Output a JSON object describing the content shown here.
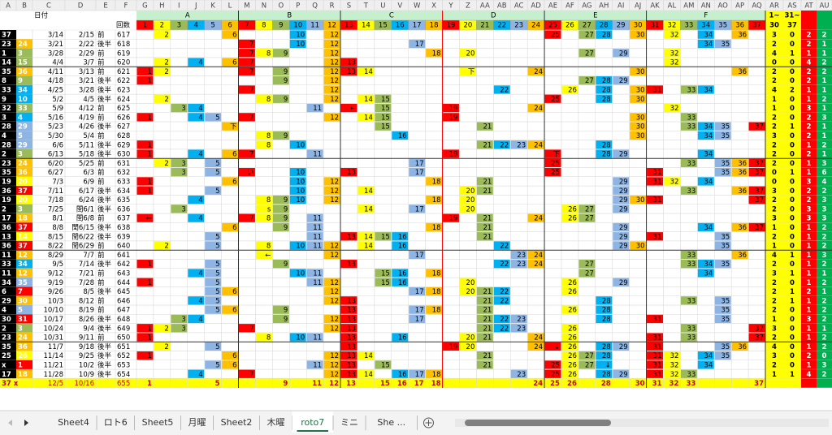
{
  "columns": [
    "A",
    "B",
    "C",
    "D",
    "E",
    "F",
    "G",
    "H",
    "I",
    "J",
    "K",
    "L",
    "M",
    "N",
    "O",
    "P",
    "Q",
    "R",
    "S",
    "T",
    "U",
    "V",
    "W",
    "X",
    "Y",
    "Z",
    "AA",
    "AB",
    "AC",
    "AD",
    "AE",
    "AF",
    "AG",
    "AH",
    "AI",
    "AJ",
    "AK",
    "AL",
    "AM",
    "AN",
    "AO",
    "AP",
    "AQ",
    "AR",
    "AS",
    "AT",
    "AU"
  ],
  "header": {
    "date_label": "日付",
    "count_label": "回数",
    "groups": [
      {
        "label": "A",
        "from": 1,
        "to": 6
      },
      {
        "label": "B",
        "from": 7,
        "to": 12
      },
      {
        "label": "C",
        "from": 13,
        "to": 18
      },
      {
        "label": "D",
        "from": 19,
        "to": 24
      },
      {
        "label": "E",
        "from": 25,
        "to": 30
      },
      {
        "label": "F",
        "from": 31,
        "to": 37
      }
    ],
    "numbers": [
      1,
      2,
      3,
      4,
      5,
      6,
      7,
      8,
      9,
      10,
      11,
      12,
      13,
      14,
      15,
      16,
      17,
      18,
      19,
      20,
      21,
      22,
      23,
      24,
      25,
      26,
      27,
      28,
      29,
      30,
      31,
      32,
      33,
      34,
      35,
      36,
      37
    ],
    "right_top": [
      "1~",
      "31~"
    ],
    "right_sub": [
      "30",
      "37"
    ]
  },
  "palette": [
    "#ff0000",
    "#ffff00",
    "#9bbb59",
    "#00b0f0",
    "#8db4e2",
    "#ffc000",
    "#ffffff"
  ],
  "rows": [
    {
      "cells": [
        "37",
        null,
        "3/14",
        "2/15",
        "前",
        "617"
      ],
      "marks": [
        2,
        6,
        10,
        12,
        25,
        27,
        28,
        30,
        32,
        34,
        36
      ],
      "stats": [
        3,
        0,
        2,
        2
      ]
    },
    {
      "cells": [
        "23",
        "24",
        "3/21",
        "2/22",
        "後半",
        "618"
      ],
      "marks": [
        7,
        10,
        12,
        17,
        34,
        35
      ],
      "stats": [
        2,
        0,
        2,
        1
      ]
    },
    {
      "cells": [
        "1",
        "3",
        "3/28",
        "2/29",
        "前",
        "619"
      ],
      "marks": [
        7,
        8,
        9,
        12,
        18,
        20,
        27,
        29,
        32
      ],
      "stats": [
        4,
        1,
        1,
        1
      ]
    },
    {
      "cells": [
        "14",
        "15",
        "4/4",
        "3/7",
        "前",
        "620"
      ],
      "marks": [
        2,
        4,
        6,
        7,
        12,
        13,
        32
      ],
      "stats": [
        0,
        0,
        4,
        2
      ]
    },
    {
      "cells": [
        "35",
        "36",
        "4/11",
        "3/13",
        "前",
        "621"
      ],
      "marks": [
        1,
        2,
        7,
        9,
        12,
        13,
        14,
        {
          "n": 20,
          "text": "下"
        },
        24,
        30,
        36
      ],
      "stats": [
        2,
        0,
        2,
        2
      ]
    },
    {
      "cells": [
        "8",
        "9",
        "4/18",
        "3/21",
        "後半",
        "622"
      ],
      "marks": [
        1,
        9,
        12,
        27,
        28,
        29
      ],
      "stats": [
        2,
        0,
        2,
        1
      ]
    },
    {
      "cells": [
        "33",
        "34",
        "4/25",
        "3/28",
        "後半",
        "623"
      ],
      "marks": [
        7,
        12,
        22,
        26,
        28,
        30,
        31,
        33,
        34
      ],
      "stats": [
        4,
        2,
        1,
        1
      ]
    },
    {
      "cells": [
        "9",
        "10",
        "5/2",
        "4/5",
        "後半",
        "624"
      ],
      "marks": [
        2,
        8,
        9,
        12,
        14,
        15,
        25,
        28,
        30
      ],
      "stats": [
        1,
        0,
        1,
        2
      ]
    },
    {
      "cells": [
        "32",
        "33",
        "5/9",
        "4/12",
        "前",
        "625"
      ],
      "marks": [
        3,
        4,
        11,
        {
          "n": 13,
          "text": "←"
        },
        15,
        19,
        24,
        32
      ],
      "stats": [
        1,
        0,
        3,
        1
      ]
    },
    {
      "cells": [
        "3",
        "4",
        "5/16",
        "4/19",
        "前",
        "626"
      ],
      "marks": [
        1,
        4,
        5,
        7,
        12,
        14,
        15,
        19,
        30,
        33
      ],
      "stats": [
        2,
        0,
        2,
        3
      ]
    },
    {
      "cells": [
        "28",
        "29",
        "5/23",
        "4/26",
        "後半",
        "627"
      ],
      "marks": [
        {
          "n": 6,
          "text": "下"
        },
        15,
        21,
        30,
        33,
        34,
        35,
        37
      ],
      "stats": [
        2,
        1,
        2,
        1
      ]
    },
    {
      "cells": [
        "4",
        "5",
        "5/30",
        "5/4",
        "前",
        "628"
      ],
      "marks": [
        8,
        9,
        16,
        30,
        34,
        35
      ],
      "stats": [
        3,
        0,
        2,
        1
      ]
    },
    {
      "cells": [
        "28",
        "29",
        "6/6",
        "5/11",
        "後半",
        "629"
      ],
      "marks": [
        1,
        8,
        10,
        21,
        22,
        23,
        24,
        28
      ],
      "stats": [
        2,
        0,
        1,
        2
      ]
    },
    {
      "cells": [
        "2",
        "3",
        "6/13",
        "5/18",
        "後半",
        "630"
      ],
      "marks": [
        1,
        4,
        6,
        7,
        11,
        19,
        {
          "n": 25,
          "text": "下"
        },
        28,
        29,
        34
      ],
      "stats": [
        2,
        0,
        2,
        1
      ]
    },
    {
      "cells": [
        "23",
        "24",
        "6/20",
        "5/25",
        "前",
        "631"
      ],
      "marks": [
        2,
        3,
        5,
        17,
        25,
        33,
        35,
        36,
        37
      ],
      "stats": [
        2,
        0,
        1,
        3
      ]
    },
    {
      "cells": [
        "35",
        "36",
        "6/27",
        "6/3",
        "前",
        "632"
      ],
      "marks": [
        3,
        5,
        {
          "n": 7,
          "text": "い"
        },
        10,
        13,
        17,
        25,
        31,
        35,
        36,
        37
      ],
      "stats": [
        0,
        1,
        1,
        6
      ]
    },
    {
      "cells": [
        "19",
        "20",
        "7/3",
        "6/9",
        "前",
        "633"
      ],
      "marks": [
        1,
        6,
        10,
        12,
        18,
        21,
        29,
        31,
        32,
        34
      ],
      "stats": [
        0,
        0,
        3,
        4
      ]
    },
    {
      "cells": [
        "36",
        "37",
        "7/11",
        "6/17",
        "後半",
        "634"
      ],
      "marks": [
        1,
        5,
        10,
        12,
        14,
        20,
        21,
        29,
        33,
        36,
        37
      ],
      "stats": [
        3,
        0,
        2,
        2
      ]
    },
    {
      "cells": [
        "19",
        "20",
        "7/18",
        "6/24",
        "後半",
        "635"
      ],
      "marks": [
        4,
        8,
        9,
        10,
        12,
        18,
        20,
        29,
        30,
        31,
        37
      ],
      "stats": [
        2,
        0,
        2,
        3
      ]
    },
    {
      "cells": [
        "2",
        "3",
        "7/25",
        "閏6/1",
        "後半",
        "636"
      ],
      "marks": [
        3,
        {
          "n": 8,
          "text": "s"
        },
        9,
        14,
        17,
        20,
        26,
        27,
        29
      ],
      "stats": [
        2,
        0,
        3,
        3
      ]
    },
    {
      "cells": [
        "17",
        "18",
        "8/1",
        "閏6/8",
        "前",
        "637"
      ],
      "marks": [
        {
          "n": 1,
          "text": "←"
        },
        4,
        7,
        8,
        9,
        11,
        19,
        21,
        24,
        26,
        27
      ],
      "stats": [
        3,
        0,
        3,
        3
      ]
    },
    {
      "cells": [
        "36",
        "37",
        "8/8",
        "閏6/15",
        "後半",
        "638"
      ],
      "marks": [
        6,
        9,
        11,
        18,
        21,
        29,
        34,
        36,
        37
      ],
      "stats": [
        1,
        0,
        1,
        2
      ]
    },
    {
      "cells": [
        "13",
        "14",
        "8/15",
        "閏6/22",
        "後半",
        "639"
      ],
      "marks": [
        5,
        11,
        13,
        14,
        15,
        16,
        21,
        29,
        31,
        35
      ],
      "stats": [
        2,
        0,
        1,
        2
      ]
    },
    {
      "cells": [
        "36",
        "37",
        "8/22",
        "閏6/29",
        "前",
        "640"
      ],
      "marks": [
        2,
        5,
        8,
        10,
        11,
        12,
        14,
        16,
        22,
        29,
        30,
        35
      ],
      "stats": [
        1,
        0,
        1,
        2
      ]
    },
    {
      "cells": [
        "11",
        "12",
        "8/29",
        "7/7",
        "前",
        "641"
      ],
      "marks": [
        {
          "n": 8,
          "text": "←"
        },
        12,
        17,
        23,
        24,
        33,
        36
      ],
      "stats": [
        4,
        1,
        1,
        3
      ]
    },
    {
      "cells": [
        "33",
        "34",
        "9/5",
        "7/14",
        "後半",
        "642"
      ],
      "marks": [
        1,
        5,
        9,
        13,
        22,
        23,
        24,
        27,
        33,
        34,
        35
      ],
      "stats": [
        2,
        0,
        1,
        2
      ]
    },
    {
      "cells": [
        "11",
        "12",
        "9/12",
        "7/21",
        "前",
        "643"
      ],
      "marks": [
        4,
        5,
        10,
        11,
        15,
        16,
        18,
        27,
        34
      ],
      "stats": [
        3,
        1,
        1,
        1
      ]
    },
    {
      "cells": [
        "34",
        "35",
        "9/19",
        "7/28",
        "前",
        "644"
      ],
      "marks": [
        1,
        5,
        11,
        12,
        15,
        16,
        20,
        26,
        29
      ],
      "stats": [
        2,
        0,
        1,
        2
      ]
    },
    {
      "cells": [
        "6",
        "7",
        "9/26",
        "8/5",
        "後半",
        "645"
      ],
      "marks": [
        5,
        6,
        12,
        17,
        18,
        20,
        21,
        22,
        26
      ],
      "stats": [
        2,
        1,
        2,
        1
      ]
    },
    {
      "cells": [
        "29",
        "30",
        "10/3",
        "8/12",
        "前",
        "646"
      ],
      "marks": [
        4,
        5,
        12,
        13,
        21,
        22,
        28,
        33,
        35
      ],
      "stats": [
        2,
        1,
        1,
        2
      ]
    },
    {
      "cells": [
        "4",
        "5",
        "10/10",
        "8/19",
        "前",
        "647"
      ],
      "marks": [
        5,
        6,
        9,
        13,
        17,
        18,
        21,
        26,
        28,
        35
      ],
      "stats": [
        2,
        0,
        1,
        2
      ]
    },
    {
      "cells": [
        "30",
        "31",
        "10/17",
        "8/26",
        "後半",
        "648"
      ],
      "marks": [
        3,
        4,
        9,
        12,
        13,
        17,
        21,
        22,
        23,
        28,
        31,
        35
      ],
      "stats": [
        1,
        0,
        3,
        2
      ]
    },
    {
      "cells": [
        "2",
        "3",
        "10/24",
        "9/4",
        "後半",
        "649"
      ],
      "marks": [
        1,
        2,
        3,
        7,
        12,
        13,
        21,
        22,
        23,
        26,
        33,
        37
      ],
      "stats": [
        3,
        0,
        1,
        1
      ]
    },
    {
      "cells": [
        "23",
        "24",
        "10/31",
        "9/11",
        "前",
        "650"
      ],
      "marks": [
        1,
        8,
        10,
        11,
        13,
        16,
        20,
        21,
        24,
        26,
        31,
        33,
        37
      ],
      "stats": [
        2,
        0,
        1,
        2
      ]
    },
    {
      "cells": [
        "35",
        "36",
        "11/7",
        "9/18",
        "後半",
        "651"
      ],
      "marks": [
        2,
        5,
        13,
        19,
        20,
        24,
        {
          "n": 25,
          "text": "↓"
        },
        26,
        28,
        29,
        31,
        35,
        36
      ],
      "stats": [
        4,
        0,
        1,
        2
      ]
    },
    {
      "cells": [
        "25",
        "26",
        "11/14",
        "9/25",
        "後半",
        "652"
      ],
      "marks": [
        1,
        6,
        12,
        13,
        14,
        21,
        26,
        27,
        28,
        31,
        32,
        34,
        35
      ],
      "stats": [
        3,
        0,
        2,
        0
      ]
    },
    {
      "cells": [
        "x",
        "1",
        "11/21",
        "10/2",
        "後半",
        "653"
      ],
      "marks": [
        5,
        6,
        11,
        12,
        13,
        15,
        21,
        25,
        26,
        27,
        {
          "n": 28,
          "text": "↓"
        },
        31,
        32,
        34
      ],
      "stats": [
        2,
        0,
        1,
        3
      ]
    },
    {
      "cells": [
        "17",
        "18",
        "11/28",
        "10/9",
        "後半",
        "654"
      ],
      "marks": [
        4,
        7,
        12,
        13,
        14,
        16,
        17,
        18,
        23,
        25,
        26,
        28,
        29,
        31,
        32,
        33
      ],
      "stats": [
        1,
        1,
        4,
        2
      ]
    }
  ],
  "total": {
    "cells": [
      "37 x",
      null,
      "12/5",
      "10/16",
      null,
      "655"
    ],
    "marks": [
      1,
      5,
      9,
      11,
      12,
      13,
      15,
      16,
      17,
      18,
      24,
      25,
      26,
      28,
      30,
      31,
      32,
      33,
      37
    ]
  },
  "tabs": [
    "Sheet4",
    "ロト6",
    "Sheet5",
    "月曜",
    "Sheet2",
    "木曜",
    "roto7",
    "ミニ",
    "She ..."
  ],
  "active_tab": 6
}
